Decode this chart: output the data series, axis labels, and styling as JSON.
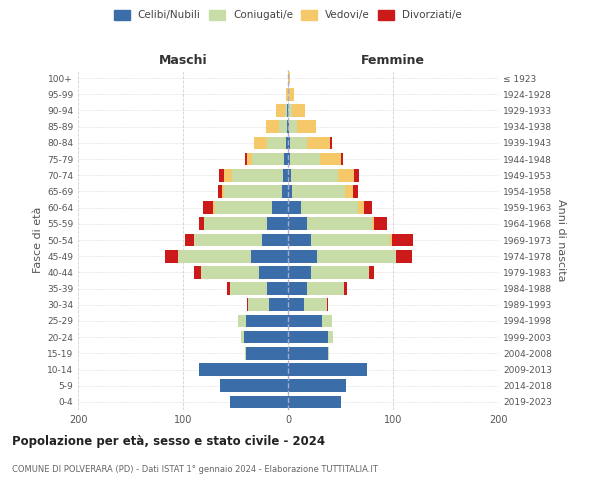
{
  "age_groups": [
    "0-4",
    "5-9",
    "10-14",
    "15-19",
    "20-24",
    "25-29",
    "30-34",
    "35-39",
    "40-44",
    "45-49",
    "50-54",
    "55-59",
    "60-64",
    "65-69",
    "70-74",
    "75-79",
    "80-84",
    "85-89",
    "90-94",
    "95-99",
    "100+"
  ],
  "birth_years": [
    "2019-2023",
    "2014-2018",
    "2009-2013",
    "2004-2008",
    "1999-2003",
    "1994-1998",
    "1989-1993",
    "1984-1988",
    "1979-1983",
    "1974-1978",
    "1969-1973",
    "1964-1968",
    "1959-1963",
    "1954-1958",
    "1949-1953",
    "1944-1948",
    "1939-1943",
    "1934-1938",
    "1929-1933",
    "1924-1928",
    "≤ 1923"
  ],
  "colors": {
    "celibi": "#3b6ea8",
    "coniugati": "#c8dca8",
    "vedovi": "#f5c96a",
    "divorziati": "#cc1a1a"
  },
  "males": {
    "celibi": [
      55,
      65,
      85,
      40,
      42,
      40,
      18,
      20,
      28,
      35,
      25,
      20,
      15,
      6,
      5,
      4,
      2,
      1,
      1,
      0,
      0
    ],
    "coniugati": [
      0,
      0,
      0,
      1,
      3,
      8,
      20,
      35,
      55,
      70,
      65,
      60,
      55,
      55,
      48,
      30,
      18,
      8,
      2,
      0,
      0
    ],
    "vedovi": [
      0,
      0,
      0,
      0,
      0,
      0,
      0,
      0,
      0,
      0,
      0,
      0,
      1,
      2,
      8,
      5,
      12,
      12,
      8,
      2,
      0
    ],
    "divorziati": [
      0,
      0,
      0,
      0,
      0,
      0,
      1,
      3,
      7,
      12,
      8,
      5,
      10,
      4,
      5,
      2,
      0,
      0,
      0,
      0,
      0
    ]
  },
  "females": {
    "celibi": [
      50,
      55,
      75,
      38,
      38,
      32,
      15,
      18,
      22,
      28,
      22,
      18,
      12,
      4,
      3,
      2,
      2,
      1,
      0,
      0,
      0
    ],
    "coniugati": [
      0,
      0,
      0,
      1,
      5,
      10,
      22,
      35,
      55,
      75,
      75,
      62,
      55,
      50,
      45,
      28,
      16,
      8,
      4,
      1,
      0
    ],
    "vedovi": [
      0,
      0,
      0,
      0,
      0,
      0,
      0,
      0,
      0,
      0,
      2,
      2,
      5,
      8,
      15,
      20,
      22,
      18,
      12,
      5,
      2
    ],
    "divorziati": [
      0,
      0,
      0,
      0,
      0,
      0,
      1,
      3,
      5,
      15,
      20,
      12,
      8,
      5,
      5,
      2,
      2,
      0,
      0,
      0,
      0
    ]
  },
  "title": "Popolazione per età, sesso e stato civile - 2024",
  "subtitle": "COMUNE DI POLVERARA (PD) - Dati ISTAT 1° gennaio 2024 - Elaborazione TUTTITALIA.IT",
  "ylabel_left": "Fasce di età",
  "ylabel_right": "Anni di nascita",
  "label_maschi": "Maschi",
  "label_femmine": "Femmine",
  "xlim": 200,
  "background_color": "#ffffff",
  "grid_color": "#cccccc",
  "legend_labels": [
    "Celibi/Nubili",
    "Coniugati/e",
    "Vedovi/e",
    "Divorziati/e"
  ]
}
